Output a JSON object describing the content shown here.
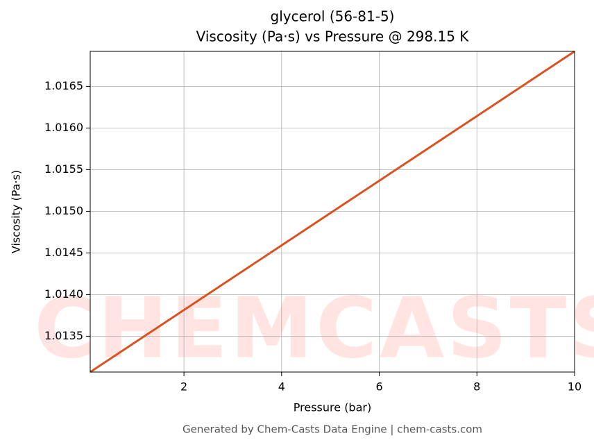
{
  "chart_data": {
    "type": "line",
    "title": "glycerol (56-81-5)",
    "subtitle": "Viscosity (Pa·s) vs Pressure @ 298.15 K",
    "x_label": "Pressure (bar)",
    "y_label": "Viscosity (Pa·s)",
    "watermark": "CHEMCASTS",
    "footer": "Generated by Chem-Casts Data Engine | chem-casts.com",
    "x": [
      0.08,
      2,
      4,
      6,
      8,
      10
    ],
    "series": [
      {
        "name": "glycerol",
        "color": "#d95321",
        "values": [
          1.01307,
          1.013815,
          1.014591,
          1.015367,
          1.016143,
          1.01692
        ]
      }
    ],
    "xlim": [
      0.08,
      10
    ],
    "ylim": [
      1.01307,
      1.01692
    ],
    "xticks": [
      2,
      4,
      6,
      8,
      10
    ],
    "yticks": [
      1.0135,
      {
        "value": 1.014,
        "label": "1.0140"
      },
      1.0145,
      {
        "value": 1.015,
        "label": "1.0150"
      },
      1.0155,
      {
        "value": 1.016,
        "label": "1.0160"
      },
      1.0165
    ],
    "grid": true
  }
}
